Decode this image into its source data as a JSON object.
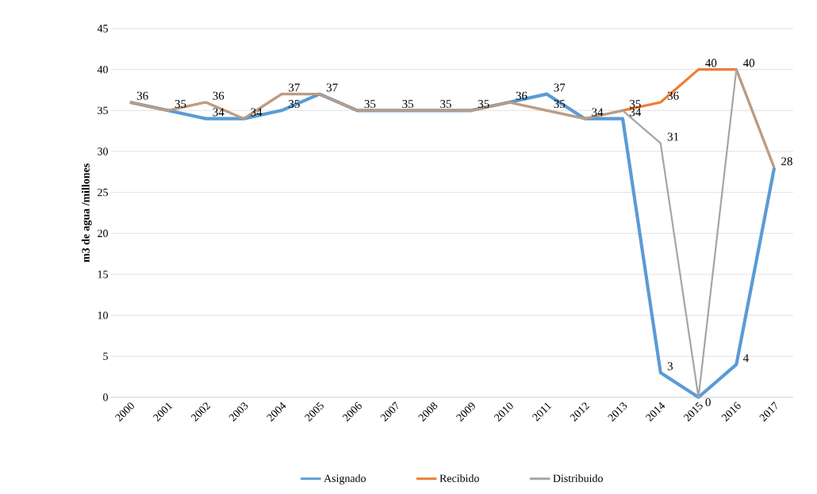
{
  "chart_data": {
    "type": "line",
    "ylabel": "m3 de agua /millones",
    "categories": [
      "2000",
      "2001",
      "2002",
      "2003",
      "2004",
      "2005",
      "2006",
      "2007",
      "2008",
      "2009",
      "2010",
      "2011",
      "2012",
      "2013",
      "2014",
      "2015",
      "2016",
      "2017"
    ],
    "series": [
      {
        "name": "Asignado",
        "color": "#5b9bd5",
        "values": [
          36,
          35,
          34,
          34,
          35,
          37,
          35,
          35,
          35,
          35,
          36,
          37,
          34,
          34,
          3,
          0,
          4,
          28
        ],
        "value_labels": [
          null,
          null,
          "34",
          null,
          "35",
          null,
          null,
          null,
          null,
          null,
          null,
          "37",
          null,
          "34",
          "3",
          null,
          "4",
          null
        ]
      },
      {
        "name": "Recibido",
        "color": "#ed7d31",
        "values": [
          36,
          35,
          36,
          34,
          37,
          37,
          35,
          35,
          35,
          35,
          36,
          35,
          34,
          35,
          36,
          40,
          40,
          28
        ],
        "value_labels": [
          null,
          null,
          null,
          null,
          null,
          null,
          null,
          null,
          null,
          null,
          null,
          null,
          null,
          null,
          "36",
          "40",
          null,
          null
        ]
      },
      {
        "name": "Distribuido",
        "color": "#a5a5a5",
        "values": [
          36,
          35,
          36,
          34,
          37,
          37,
          35,
          35,
          35,
          35,
          36,
          35,
          34,
          35,
          31,
          0,
          40,
          28
        ],
        "value_labels": [
          "36",
          "35",
          "36",
          "34",
          "37",
          "37",
          "35",
          "35",
          "35",
          "35",
          "36",
          "35",
          "34",
          "35",
          "31",
          "0",
          "40",
          "28"
        ]
      }
    ],
    "ylim": [
      0,
      45
    ],
    "yticks": [
      0,
      5,
      10,
      15,
      20,
      25,
      30,
      35,
      40,
      45
    ],
    "grid": "y",
    "legend": "bottom",
    "marker": "none",
    "line_style": "solid"
  }
}
